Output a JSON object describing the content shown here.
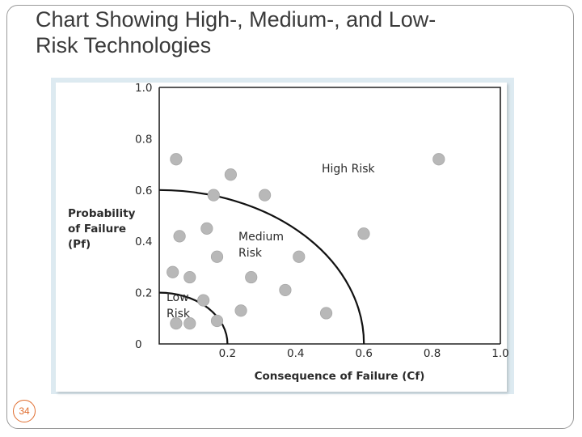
{
  "slide": {
    "title_line1": "Chart Showing High-, Medium-, and Low-",
    "title_line2": "Risk Technologies",
    "page_number": "34"
  },
  "chart_data": {
    "type": "scatter",
    "title": "",
    "xlabel": "Consequence of Failure (Cf)",
    "ylabel_lines": [
      "Probability",
      "of Failure",
      "(Pf)"
    ],
    "xlim": [
      0,
      1.0
    ],
    "ylim": [
      0,
      1.0
    ],
    "x_ticks": [
      "0.2",
      "0.4",
      "0.6",
      "0.8",
      "1.0"
    ],
    "x_tick_values": [
      0.2,
      0.4,
      0.6,
      0.8,
      1.0
    ],
    "y_ticks": [
      "0",
      "0.2",
      "0.4",
      "0.6",
      "0.8",
      "1.0"
    ],
    "y_tick_values": [
      0,
      0.2,
      0.4,
      0.6,
      0.8,
      1.0
    ],
    "regions": [
      {
        "label_lines": [
          "Low",
          "Risk"
        ],
        "boundary_radius": 0.2
      },
      {
        "label_lines": [
          "Medium",
          "Risk"
        ],
        "boundary_radius": 0.6
      },
      {
        "label_lines": [
          "High Risk"
        ],
        "boundary_radius": null
      }
    ],
    "point_color": "#b8b8b8",
    "points": [
      {
        "x": 0.04,
        "y": 0.08
      },
      {
        "x": 0.08,
        "y": 0.08
      },
      {
        "x": 0.16,
        "y": 0.09
      },
      {
        "x": 0.12,
        "y": 0.17
      },
      {
        "x": 0.03,
        "y": 0.28
      },
      {
        "x": 0.08,
        "y": 0.26
      },
      {
        "x": 0.05,
        "y": 0.42
      },
      {
        "x": 0.13,
        "y": 0.45
      },
      {
        "x": 0.16,
        "y": 0.34
      },
      {
        "x": 0.23,
        "y": 0.13
      },
      {
        "x": 0.26,
        "y": 0.26
      },
      {
        "x": 0.36,
        "y": 0.21
      },
      {
        "x": 0.4,
        "y": 0.34
      },
      {
        "x": 0.48,
        "y": 0.12
      },
      {
        "x": 0.04,
        "y": 0.72
      },
      {
        "x": 0.15,
        "y": 0.58
      },
      {
        "x": 0.2,
        "y": 0.66
      },
      {
        "x": 0.3,
        "y": 0.58
      },
      {
        "x": 0.59,
        "y": 0.43
      },
      {
        "x": 0.81,
        "y": 0.72
      }
    ]
  }
}
